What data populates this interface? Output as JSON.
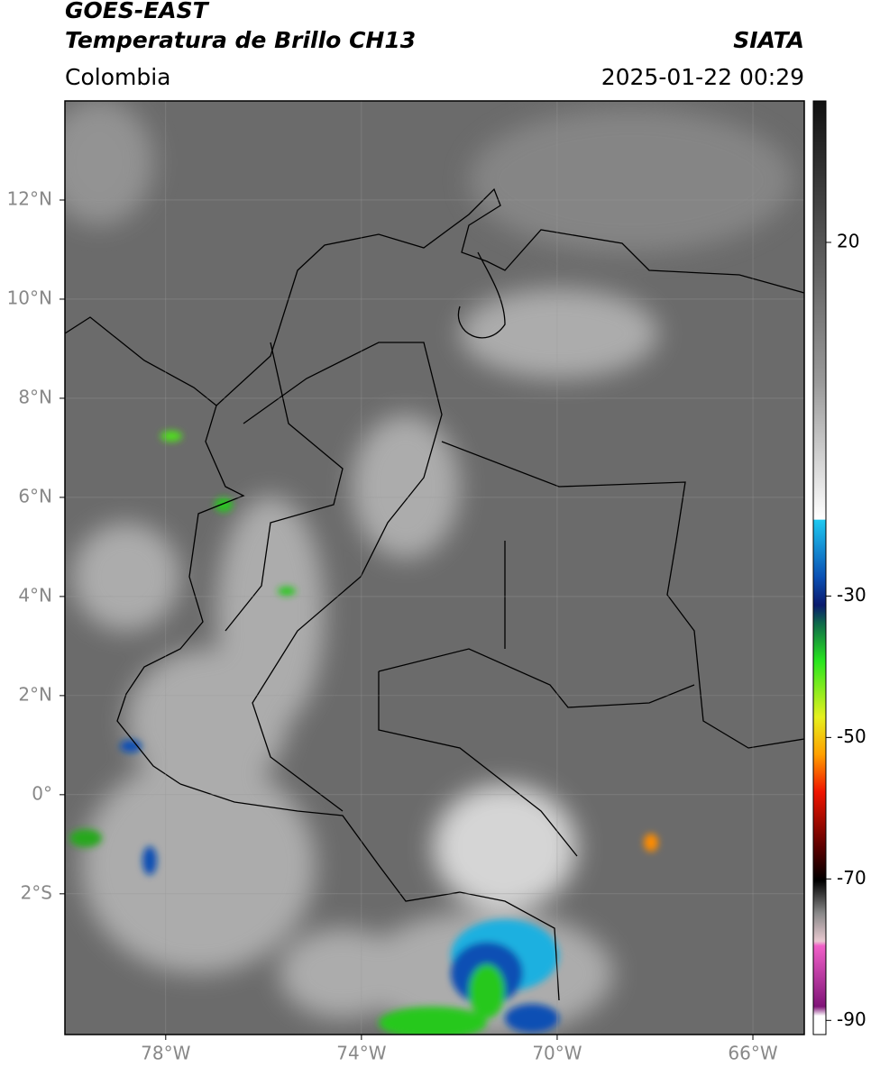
{
  "header": {
    "title": "GOES-EAST",
    "subtitle": "Temperatura de Brillo CH13",
    "source": "SIATA",
    "region": "Colombia",
    "datetime": "2025-01-22 00:29"
  },
  "map": {
    "xlim": [
      -80.06,
      -64.95
    ],
    "ylim": [
      -4.84,
      14
    ],
    "xticks": [
      {
        "value": -78,
        "label": "78°W"
      },
      {
        "value": -74,
        "label": "74°W"
      },
      {
        "value": -70,
        "label": "70°W"
      },
      {
        "value": -66,
        "label": "66°W"
      }
    ],
    "yticks": [
      {
        "value": 12,
        "label": "12°N"
      },
      {
        "value": 10,
        "label": "10°N"
      },
      {
        "value": 8,
        "label": "8°N"
      },
      {
        "value": 6,
        "label": "6°N"
      },
      {
        "value": 4,
        "label": "4°N"
      },
      {
        "value": 2,
        "label": "2°N"
      },
      {
        "value": 0,
        "label": "0°"
      },
      {
        "value": -2,
        "label": "2°S"
      }
    ],
    "grid": true
  },
  "colorbar": {
    "clim": [
      -92,
      40
    ],
    "ticks": [
      20,
      -30,
      -50,
      -70,
      -90
    ]
  }
}
